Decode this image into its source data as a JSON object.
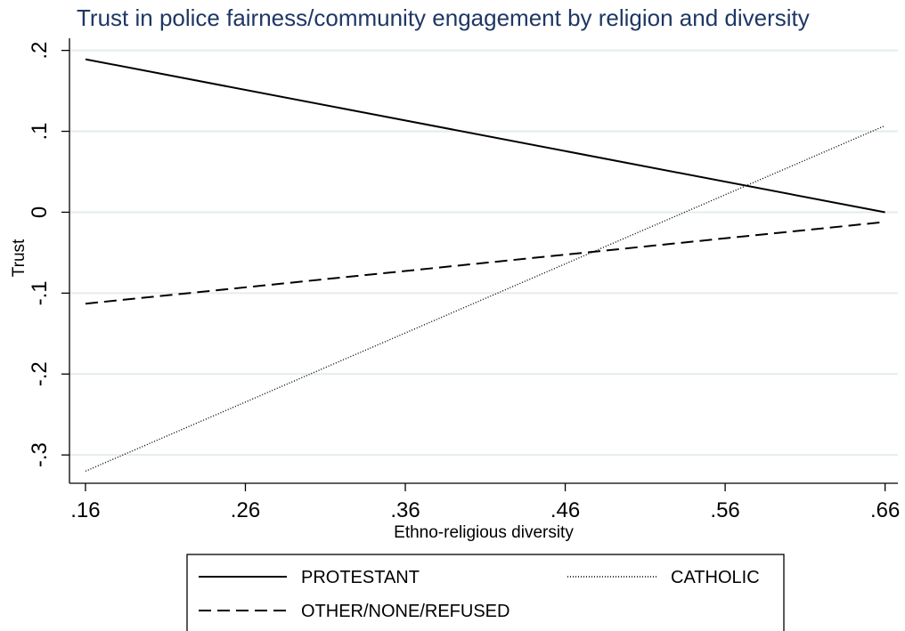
{
  "chart_data": {
    "type": "line",
    "title": "Trust in police fairness/community engagement by religion and diversity",
    "xlabel": "Ethno-religious diversity",
    "ylabel": "Trust",
    "xlim": [
      0.15,
      0.668
    ],
    "ylim": [
      -0.335,
      0.215
    ],
    "x_ticks": [
      0.16,
      0.26,
      0.36,
      0.46,
      0.56,
      0.66
    ],
    "x_tick_labels": [
      ".16",
      ".26",
      ".36",
      ".46",
      ".56",
      ".66"
    ],
    "y_ticks": [
      -0.3,
      -0.2,
      -0.1,
      0,
      0.1,
      0.2
    ],
    "y_tick_labels": [
      "-.3",
      "-.2",
      "-.1",
      "0",
      ".1",
      ".2"
    ],
    "grid": true,
    "legend_position": "bottom",
    "colors": {
      "title": "#1e3764",
      "line": "#000000",
      "grid": "#e4ede9"
    },
    "series": [
      {
        "name": "PROTESTANT",
        "style": "solid",
        "x": [
          0.16,
          0.66
        ],
        "y": [
          0.189,
          0.0
        ]
      },
      {
        "name": "CATHOLIC",
        "style": "dotted",
        "x": [
          0.16,
          0.66
        ],
        "y": [
          -0.32,
          0.107
        ]
      },
      {
        "name": "OTHER/NONE/REFUSED",
        "style": "dashed",
        "x": [
          0.16,
          0.66
        ],
        "y": [
          -0.113,
          -0.012
        ]
      }
    ]
  }
}
